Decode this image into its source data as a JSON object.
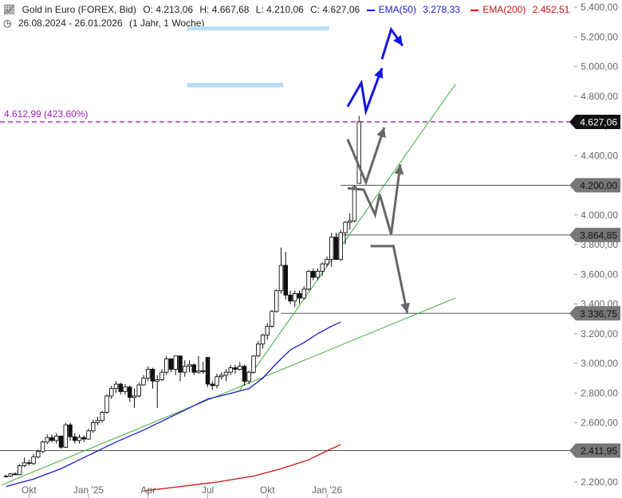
{
  "header": {
    "title": "Gold in Euro (FOREX, Bid)",
    "open": "O: 4.213,06",
    "high": "H: 4.667,68",
    "low": "L: 4.210,06",
    "close": "C: 4.627,06",
    "ema50_label": "EMA(50)",
    "ema50_value": "3.278,33",
    "ema200_label": "EMA(200)",
    "ema200_value": "2.452,51",
    "range": "26.08.2024 - 26.01.2026",
    "interval": "(1 Jahr, 1 Woche)"
  },
  "colors": {
    "ema50": "#1a1acc",
    "ema200": "#cc1111",
    "trend": "#3cab3c",
    "target_line": "#a020c0",
    "arrows_up": "#1414e0",
    "arrows_gray": "#666666",
    "zones": "#b8dcf4"
  },
  "chart_data": {
    "type": "candlestick",
    "ylim": [
      2170,
      5480
    ],
    "y_ticks": [
      2200,
      2400,
      2600,
      2800,
      3000,
      3200,
      3400,
      3600,
      3800,
      4000,
      4200,
      4400,
      4600,
      4800,
      5000,
      5200,
      5400
    ],
    "y_tick_labels": [
      "2.200,00",
      "2.400,00",
      "2.600,00",
      "2.800,00",
      "3.000,00",
      "3.200,00",
      "3.400,00",
      "3.600,00",
      "3.800,00",
      "4.000,00",
      "4.200,00",
      "4.400,00",
      "4.600,00",
      "4.800,00",
      "5.000,00",
      "5.200,00",
      "5.400,00"
    ],
    "x_labels": [
      {
        "text": "Okt",
        "week": 5
      },
      {
        "text": "Jan '25",
        "week": 18
      },
      {
        "text": "Apr",
        "week": 31
      },
      {
        "text": "Jul",
        "week": 44
      },
      {
        "text": "Okt",
        "week": 57
      },
      {
        "text": "Jan '26",
        "week": 70
      }
    ],
    "candles": [
      [
        2237,
        2250,
        2230,
        2240
      ],
      [
        2240,
        2262,
        2235,
        2255
      ],
      [
        2255,
        2265,
        2247,
        2250
      ],
      [
        2250,
        2320,
        2245,
        2310
      ],
      [
        2310,
        2365,
        2300,
        2330
      ],
      [
        2330,
        2350,
        2310,
        2325
      ],
      [
        2325,
        2390,
        2315,
        2370
      ],
      [
        2370,
        2420,
        2360,
        2405
      ],
      [
        2405,
        2480,
        2395,
        2470
      ],
      [
        2470,
        2520,
        2455,
        2500
      ],
      [
        2500,
        2520,
        2470,
        2480
      ],
      [
        2480,
        2530,
        2460,
        2510
      ],
      [
        2510,
        2480,
        2425,
        2435
      ],
      [
        2435,
        2600,
        2430,
        2585
      ],
      [
        2585,
        2600,
        2480,
        2505
      ],
      [
        2505,
        2530,
        2460,
        2480
      ],
      [
        2480,
        2520,
        2460,
        2500
      ],
      [
        2500,
        2515,
        2470,
        2490
      ],
      [
        2490,
        2560,
        2485,
        2545
      ],
      [
        2545,
        2620,
        2530,
        2600
      ],
      [
        2600,
        2640,
        2585,
        2615
      ],
      [
        2615,
        2680,
        2600,
        2670
      ],
      [
        2670,
        2790,
        2660,
        2780
      ],
      [
        2780,
        2850,
        2760,
        2830
      ],
      [
        2830,
        2880,
        2800,
        2860
      ],
      [
        2860,
        2870,
        2790,
        2810
      ],
      [
        2810,
        2860,
        2790,
        2840
      ],
      [
        2840,
        2850,
        2740,
        2770
      ],
      [
        2770,
        2830,
        2700,
        2780
      ],
      [
        2780,
        2870,
        2770,
        2855
      ],
      [
        2855,
        2920,
        2850,
        2900
      ],
      [
        2900,
        2980,
        2880,
        2960
      ],
      [
        2960,
        2970,
        2830,
        2880
      ],
      [
        2880,
        2920,
        2700,
        2890
      ],
      [
        2890,
        2960,
        2880,
        2940
      ],
      [
        2940,
        3050,
        2920,
        3030
      ],
      [
        3030,
        3010,
        2940,
        2960
      ],
      [
        2960,
        3050,
        2920,
        3050
      ],
      [
        3050,
        3040,
        2880,
        2940
      ],
      [
        2940,
        3020,
        2910,
        2980
      ],
      [
        2980,
        3020,
        2940,
        2990
      ],
      [
        2990,
        3000,
        2920,
        2940
      ],
      [
        2940,
        3050,
        2930,
        2950
      ],
      [
        2950,
        3010,
        2930,
        2950
      ],
      [
        3040,
        3040,
        2840,
        2860
      ],
      [
        2860,
        2880,
        2820,
        2850
      ],
      [
        2850,
        2930,
        2830,
        2910
      ],
      [
        2910,
        2940,
        2890,
        2920
      ],
      [
        2920,
        2960,
        2880,
        2940
      ],
      [
        2940,
        2990,
        2920,
        2970
      ],
      [
        2970,
        2990,
        2930,
        2960
      ],
      [
        2960,
        3010,
        2950,
        2980
      ],
      [
        2980,
        2990,
        2850,
        2880
      ],
      [
        2880,
        2950,
        2860,
        2940
      ],
      [
        2940,
        3050,
        2930,
        3050
      ],
      [
        3050,
        3150,
        3040,
        3130
      ],
      [
        3130,
        3200,
        3100,
        3190
      ],
      [
        3190,
        3270,
        3160,
        3250
      ],
      [
        3250,
        3360,
        3240,
        3350
      ],
      [
        3350,
        3500,
        3340,
        3490
      ],
      [
        3490,
        3780,
        3470,
        3660
      ],
      [
        3660,
        3750,
        3430,
        3460
      ],
      [
        3460,
        3490,
        3400,
        3420
      ],
      [
        3420,
        3490,
        3380,
        3470
      ],
      [
        3470,
        3490,
        3400,
        3440
      ],
      [
        3440,
        3520,
        3430,
        3500
      ],
      [
        3500,
        3630,
        3490,
        3620
      ],
      [
        3620,
        3640,
        3560,
        3580
      ],
      [
        3580,
        3640,
        3560,
        3620
      ],
      [
        3620,
        3680,
        3590,
        3670
      ],
      [
        3670,
        3720,
        3650,
        3700
      ],
      [
        3700,
        3880,
        3650,
        3850
      ],
      [
        3850,
        3880,
        3720,
        3700
      ],
      [
        3700,
        3900,
        3690,
        3880
      ],
      [
        3880,
        3960,
        3800,
        3950
      ],
      [
        3950,
        4010,
        3900,
        3960
      ],
      [
        3960,
        4200,
        3950,
        4190
      ],
      [
        4213.06,
        4667.68,
        4210.06,
        4627.06
      ]
    ],
    "ema50": [
      [
        0,
        2170
      ],
      [
        6,
        2220
      ],
      [
        12,
        2290
      ],
      [
        18,
        2380
      ],
      [
        24,
        2470
      ],
      [
        30,
        2550
      ],
      [
        36,
        2640
      ],
      [
        40,
        2700
      ],
      [
        44,
        2760
      ],
      [
        48,
        2790
      ],
      [
        53,
        2830
      ],
      [
        56,
        2900
      ],
      [
        59,
        3000
      ],
      [
        62,
        3090
      ],
      [
        65,
        3140
      ],
      [
        68,
        3200
      ],
      [
        71,
        3250
      ],
      [
        73,
        3278.33
      ]
    ],
    "ema200": [
      [
        30,
        2140
      ],
      [
        38,
        2170
      ],
      [
        46,
        2200
      ],
      [
        54,
        2240
      ],
      [
        60,
        2290
      ],
      [
        66,
        2350
      ],
      [
        70,
        2410
      ],
      [
        73,
        2452.51
      ]
    ],
    "trend_lines": [
      {
        "from": [
          -1,
          2180
        ],
        "to": [
          98,
          3440
        ]
      },
      {
        "from": [
          51,
          2820
        ],
        "to": [
          98,
          4880
        ]
      }
    ],
    "levels": [
      {
        "value": 2411.95,
        "label": "2.411,95",
        "from": -1,
        "style": "gray"
      },
      {
        "value": 3336.75,
        "label": "3.336,75",
        "from": 60,
        "style": "gray"
      },
      {
        "value": 3864.85,
        "label": "3.864,85",
        "from": 72,
        "style": "gray"
      },
      {
        "value": 4200.0,
        "label": "4.200,00",
        "from": 73,
        "style": "gray"
      },
      {
        "value": 4627.06,
        "label": "4.627,06",
        "from": -1,
        "style": "current"
      }
    ],
    "target_line": {
      "value": 4612.99,
      "label": "4.612,99 (423.60%)"
    },
    "zones": [
      {
        "y0": 5250,
        "y1": 5270,
        "x0": 39.5,
        "x1": 70.5
      },
      {
        "y0": 4860,
        "y1": 4890,
        "x0": 39.5,
        "x1": 60.5
      }
    ],
    "up_path": [
      [
        74.5,
        4730
      ],
      [
        77.5,
        4890
      ],
      [
        78.5,
        4700
      ],
      [
        82,
        4990
      ]
    ],
    "up_path2": [
      [
        82,
        5050
      ],
      [
        84,
        5250
      ],
      [
        86.5,
        5140
      ]
    ],
    "gray_paths": [
      [
        [
          74.5,
          4510
        ],
        [
          78.5,
          4220
        ],
        [
          82.5,
          4590
        ]
      ],
      [
        [
          74.5,
          4180
        ],
        [
          78,
          4170
        ],
        [
          80.5,
          4000
        ],
        [
          81.5,
          4140
        ],
        [
          84,
          3870
        ],
        [
          86,
          4340
        ]
      ],
      [
        [
          79.5,
          3790
        ],
        [
          84.5,
          3790
        ],
        [
          87.5,
          3340
        ]
      ]
    ]
  }
}
